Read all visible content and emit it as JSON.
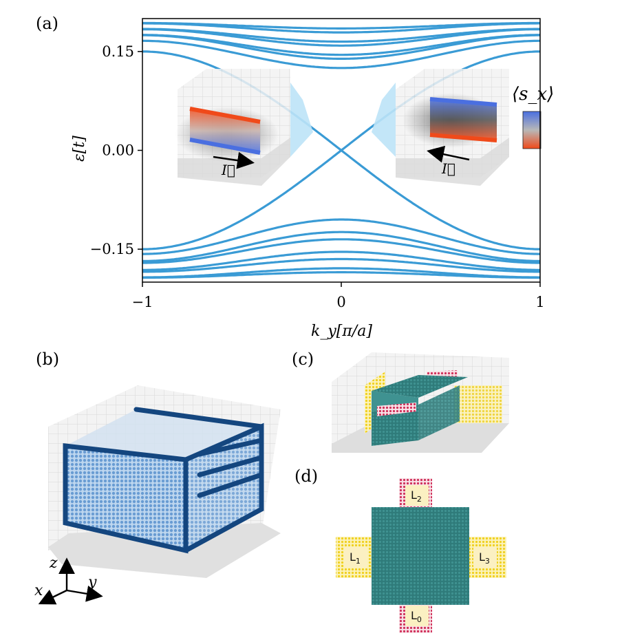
{
  "panels": {
    "a": "(a)",
    "b": "(b)",
    "c": "(c)",
    "d": "(d)"
  },
  "chart_data": {
    "type": "line",
    "xlabel": "k_y[π/a]",
    "ylabel": "ε[t]",
    "xlim": [
      -1,
      1
    ],
    "ylim": [
      -0.2,
      0.2
    ],
    "xticks": [
      -1,
      0,
      1
    ],
    "xtick_labels": [
      "−1",
      "0",
      "1"
    ],
    "yticks": [
      -0.15,
      0.0,
      0.15
    ],
    "ytick_labels": [
      "−0.15",
      "0.00",
      "0.15"
    ],
    "grid": false,
    "series_color": "#3a9bd5",
    "crossing_bands": {
      "description_free": true,
      "linear_slope": 0.2,
      "edge_value_at_k1": 0.15
    },
    "gapped_bands_upper_min": [
      0.125,
      0.135,
      0.145,
      0.155,
      0.165,
      0.175,
      0.185
    ],
    "gapped_bands_lower_max": [
      -0.105,
      -0.12,
      -0.135,
      -0.15,
      -0.165,
      -0.175,
      -0.185
    ],
    "legend": {
      "title": "⟨s_x⟩",
      "colors": [
        "#4a6fe0",
        "#b0b0b0",
        "#f04a1a"
      ],
      "placement": "right"
    },
    "insets": [
      {
        "position": "left",
        "current_label": "I⃗",
        "arrow_direction": "right"
      },
      {
        "position": "right",
        "current_label": "I⃗",
        "arrow_direction": "left"
      }
    ]
  },
  "lattice": {
    "axes": {
      "x": "x",
      "y": "y",
      "z": "z"
    },
    "leads": [
      "L0",
      "L1",
      "L2",
      "L3"
    ],
    "lead_labels": {
      "L0": "L",
      "L0_sub": "0",
      "L1": "L",
      "L1_sub": "1",
      "L2": "L",
      "L2_sub": "2",
      "L3": "L",
      "L3_sub": "3"
    },
    "colors": {
      "scatter": "#2f7b7a",
      "lead_yellow": "#f0d020",
      "lead_red": "#d0305a",
      "wire_blue": "#1f5fa8"
    }
  }
}
